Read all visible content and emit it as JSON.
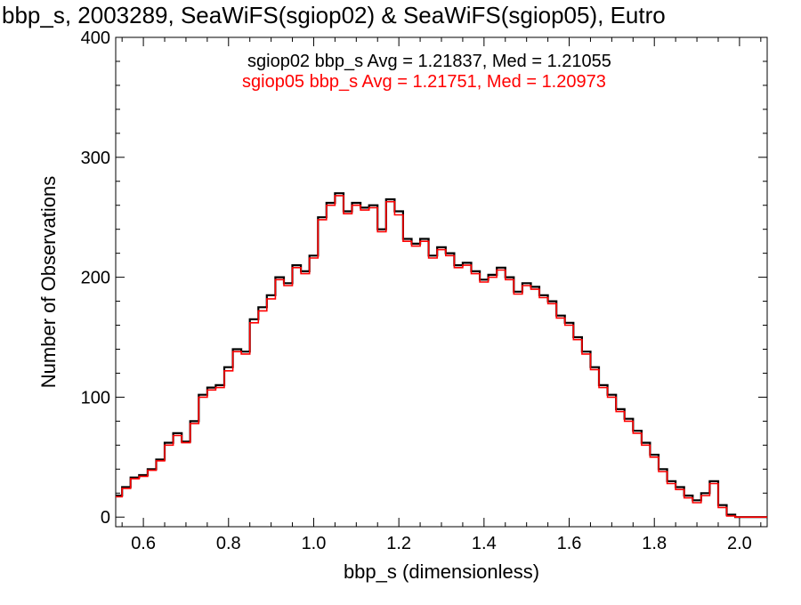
{
  "chart_data": {
    "type": "line",
    "title": "bbp_s, 2003289, SeaWiFS(sgiop02) & SeaWiFS(sgiop05), Eutro",
    "xlabel": "bbp_s (dimensionless)",
    "ylabel": "Number of Observations",
    "xlim": [
      0.535,
      2.065
    ],
    "ylim": [
      -8,
      400
    ],
    "x_ticks": [
      0.6,
      0.8,
      1.0,
      1.2,
      1.4,
      1.6,
      1.8,
      2.0
    ],
    "x_tick_labels": [
      "0.6",
      "0.8",
      "1.0",
      "1.2",
      "1.4",
      "1.6",
      "1.8",
      "2.0"
    ],
    "y_ticks": [
      0,
      100,
      200,
      300,
      400
    ],
    "y_tick_labels": [
      "0",
      "100",
      "200",
      "300",
      "400"
    ],
    "grid": false,
    "annotations": [
      {
        "text": "sgiop02 bbp_s Avg = 1.21837, Med = 1.21055",
        "color": "#000000"
      },
      {
        "text": "sgiop05 bbp_s Avg = 1.21751, Med = 1.20973",
        "color": "#ff0000"
      }
    ],
    "x": [
      0.54,
      0.56,
      0.58,
      0.6,
      0.62,
      0.64,
      0.66,
      0.68,
      0.7,
      0.72,
      0.74,
      0.76,
      0.78,
      0.8,
      0.82,
      0.84,
      0.86,
      0.88,
      0.9,
      0.92,
      0.94,
      0.96,
      0.98,
      1.0,
      1.02,
      1.04,
      1.06,
      1.08,
      1.1,
      1.12,
      1.14,
      1.16,
      1.18,
      1.2,
      1.22,
      1.24,
      1.26,
      1.28,
      1.3,
      1.32,
      1.34,
      1.36,
      1.38,
      1.4,
      1.42,
      1.44,
      1.46,
      1.48,
      1.5,
      1.52,
      1.54,
      1.56,
      1.58,
      1.6,
      1.62,
      1.64,
      1.66,
      1.68,
      1.7,
      1.72,
      1.74,
      1.76,
      1.78,
      1.8,
      1.82,
      1.84,
      1.86,
      1.88,
      1.9,
      1.92,
      1.94,
      1.96,
      1.98,
      2.0,
      2.02,
      2.04,
      2.06
    ],
    "series": [
      {
        "color": "#000000",
        "values": [
          18,
          25,
          33,
          35,
          40,
          48,
          62,
          70,
          63,
          80,
          102,
          108,
          110,
          125,
          140,
          138,
          165,
          175,
          185,
          200,
          195,
          210,
          205,
          218,
          250,
          262,
          270,
          255,
          262,
          258,
          260,
          240,
          265,
          255,
          232,
          228,
          232,
          218,
          225,
          220,
          210,
          212,
          205,
          198,
          202,
          208,
          200,
          188,
          195,
          192,
          185,
          180,
          168,
          162,
          150,
          138,
          125,
          110,
          102,
          90,
          82,
          72,
          62,
          52,
          40,
          30,
          25,
          18,
          14,
          20,
          30,
          10,
          2,
          0,
          0,
          0,
          0
        ]
      },
      {
        "color": "#ff0000",
        "values": [
          17,
          24,
          32,
          34,
          39,
          47,
          60,
          68,
          62,
          78,
          100,
          106,
          108,
          122,
          138,
          136,
          162,
          172,
          182,
          198,
          193,
          208,
          203,
          216,
          248,
          260,
          268,
          253,
          260,
          256,
          258,
          238,
          263,
          252,
          230,
          226,
          230,
          216,
          223,
          218,
          208,
          210,
          203,
          196,
          200,
          206,
          198,
          186,
          193,
          190,
          183,
          178,
          166,
          160,
          148,
          136,
          123,
          108,
          100,
          88,
          80,
          70,
          60,
          50,
          38,
          28,
          23,
          16,
          12,
          18,
          28,
          8,
          1,
          0,
          0,
          0,
          0
        ]
      }
    ]
  }
}
